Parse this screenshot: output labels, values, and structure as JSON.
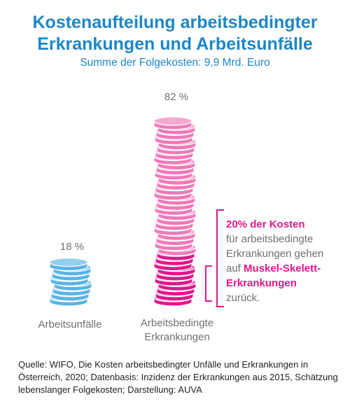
{
  "title_line1": "Kostenaufteilung arbeitsbedingter",
  "title_line2": "Erkrankungen und Arbeitsunfälle",
  "subtitle": "Summe der Folgekosten: 9,9 Mrd. Euro",
  "chart_data": {
    "type": "bar",
    "categories": [
      "Arbeitsunfälle",
      "Arbeitsbedingte Erkrankungen"
    ],
    "values": [
      18,
      82
    ],
    "value_labels": [
      "18 %",
      "82 %"
    ],
    "unit": "%",
    "sub_share": {
      "category": "Arbeitsbedingte Erkrankungen",
      "label": "Muskel-Skelett-Erkrankungen",
      "share_of_category_costs": 20
    },
    "colors": {
      "Arbeitsunfälle": "#5ab4e6",
      "Arbeitsbedingte Erkrankungen": "#f07ab8",
      "highlight": "#e0188b"
    }
  },
  "labels": {
    "cat1": "Arbeitsunfälle",
    "cat2_line1": "Arbeitsbedingte",
    "cat2_line2": "Erkrankungen",
    "pct1": "18 %",
    "pct2": "82 %"
  },
  "annotation": {
    "strong1": "20% der Kosten",
    "line2": "für arbeitsbedingte",
    "line3": "Erkrankungen gehen",
    "line4_prefix": "auf ",
    "strong2": "Muskel-Skelett-",
    "strong3": "Erkrankungen",
    "line6": "zurück."
  },
  "source": "Quelle: WIFO, Die Kosten arbeitsbedingter Unfälle und Erkrankungen in Österreich, 2020; Datenbasis: Inzidenz der Erkrankungen aus 2015, Schätzung lebenslanger Folgekosten; Darstellung: AUVA"
}
